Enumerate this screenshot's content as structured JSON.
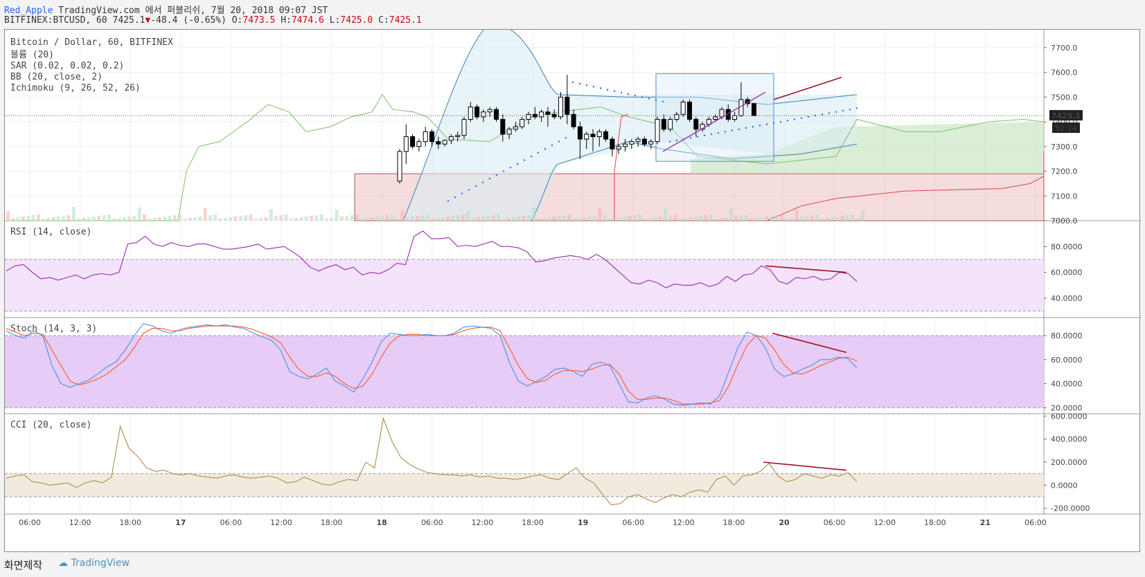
{
  "header": {
    "author": "Red_Apple",
    "published": " TradingView.com 에서 퍼블리쉬, 7월 20, 2018 09:07 JST",
    "symbol_line": "BITFINEX:BTCUSD, 60 7425.1",
    "change": "-48.4 (-0.65%)",
    "o_label": "O:",
    "o_value": "7473.5",
    "h_label": "H:",
    "h_value": "7474.6",
    "l_label": "L:",
    "l_value": "7425.0",
    "c_label": "C:",
    "c_value": "7425.1"
  },
  "footer": {
    "made_with": "화면제작",
    "brand": "TradingView"
  },
  "colors": {
    "up": "#ffffff",
    "down": "#000000",
    "rsi": "#9c27b0",
    "stoch_k": "#4a90e2",
    "stoch_d": "#ff5722",
    "cci": "#b08a4a",
    "bb": "#3a7fb5",
    "ichimoku_lag": "#7cbf6a",
    "ichimoku_red": "#e04040",
    "divergence": "#a01020"
  },
  "chart_data": [
    {
      "type": "candlestick",
      "title": "Bitcoin / Dollar, 60, BITFINEX",
      "legend": [
        "볼륨 (20)",
        "SAR (0.02, 0.02, 0.2)",
        "BB (20, close, 2)",
        "Ichimoku (9, 26, 52, 26)"
      ],
      "ylim": [
        7000,
        7750
      ],
      "yticks": [
        "7700.0",
        "7600.0",
        "7500.0",
        "7400.0",
        "7300.0",
        "7200.0",
        "7100.0",
        "7000.0"
      ],
      "last_price": "7425.1",
      "countdown": "52:24",
      "x_ticks": [
        "06:00",
        "12:00",
        "18:00",
        "17",
        "06:00",
        "12:00",
        "18:00",
        "18",
        "06:00",
        "12:00",
        "18:00",
        "19",
        "06:00",
        "12:00",
        "18:00",
        "20",
        "06:00",
        "12:00",
        "18:00",
        "21",
        "06:00"
      ],
      "candles_from_18_0000": [
        [
          7160,
          7290,
          7150,
          7280
        ],
        [
          7280,
          7390,
          7230,
          7340
        ],
        [
          7340,
          7350,
          7290,
          7300
        ],
        [
          7300,
          7330,
          7280,
          7320
        ],
        [
          7320,
          7380,
          7300,
          7360
        ],
        [
          7360,
          7370,
          7300,
          7320
        ],
        [
          7320,
          7340,
          7290,
          7310
        ],
        [
          7310,
          7330,
          7300,
          7325
        ],
        [
          7325,
          7350,
          7310,
          7340
        ],
        [
          7340,
          7360,
          7320,
          7345
        ],
        [
          7345,
          7420,
          7330,
          7410
        ],
        [
          7410,
          7480,
          7400,
          7460
        ],
        [
          7460,
          7470,
          7410,
          7420
        ],
        [
          7420,
          7450,
          7400,
          7440
        ],
        [
          7440,
          7460,
          7420,
          7450
        ],
        [
          7450,
          7460,
          7400,
          7410
        ],
        [
          7410,
          7430,
          7320,
          7350
        ],
        [
          7350,
          7380,
          7330,
          7370
        ],
        [
          7370,
          7400,
          7360,
          7380
        ],
        [
          7380,
          7420,
          7370,
          7410
        ],
        [
          7410,
          7440,
          7390,
          7430
        ],
        [
          7430,
          7460,
          7410,
          7420
        ],
        [
          7420,
          7450,
          7400,
          7440
        ],
        [
          7440,
          7460,
          7380,
          7430
        ],
        [
          7430,
          7450,
          7410,
          7420
        ],
        [
          7420,
          7520,
          7410,
          7500
        ],
        [
          7500,
          7590,
          7390,
          7430
        ],
        [
          7430,
          7450,
          7370,
          7380
        ],
        [
          7380,
          7400,
          7250,
          7330
        ],
        [
          7330,
          7360,
          7290,
          7350
        ],
        [
          7350,
          7370,
          7280,
          7340
        ],
        [
          7340,
          7370,
          7300,
          7360
        ],
        [
          7360,
          7370,
          7320,
          7330
        ],
        [
          7330,
          7340,
          7260,
          7290
        ],
        [
          7290,
          7310,
          7270,
          7300
        ],
        [
          7300,
          7330,
          7280,
          7310
        ],
        [
          7310,
          7330,
          7290,
          7320
        ],
        [
          7320,
          7340,
          7300,
          7330
        ],
        [
          7330,
          7340,
          7300,
          7310
        ],
        [
          7310,
          7330,
          7290,
          7320
        ],
        [
          7320,
          7420,
          7310,
          7410
        ],
        [
          7410,
          7430,
          7360,
          7370
        ],
        [
          7370,
          7420,
          7360,
          7410
        ],
        [
          7410,
          7440,
          7400,
          7430
        ],
        [
          7430,
          7490,
          7420,
          7480
        ],
        [
          7480,
          7490,
          7400,
          7410
        ],
        [
          7410,
          7420,
          7340,
          7370
        ],
        [
          7370,
          7400,
          7360,
          7390
        ],
        [
          7390,
          7420,
          7380,
          7410
        ],
        [
          7410,
          7430,
          7400,
          7420
        ],
        [
          7420,
          7460,
          7410,
          7450
        ],
        [
          7450,
          7470,
          7400,
          7410
        ],
        [
          7410,
          7440,
          7400,
          7425
        ],
        [
          7425,
          7560,
          7420,
          7490
        ],
        [
          7490,
          7500,
          7460,
          7473.5
        ],
        [
          7473.5,
          7474.6,
          7425.0,
          7425.1
        ]
      ]
    },
    {
      "type": "line",
      "title": "RSI (14, close)",
      "ylim": [
        25,
        100
      ],
      "yticks": [
        "80.0000",
        "60.0000",
        "40.0000"
      ],
      "band": [
        30,
        70
      ],
      "values": [
        61,
        65,
        66,
        60,
        55,
        56,
        54,
        56,
        58,
        55,
        58,
        59,
        58,
        60,
        82,
        83,
        88,
        82,
        80,
        83,
        81,
        80,
        82,
        82,
        80,
        78,
        78,
        79,
        80,
        82,
        78,
        79,
        80,
        76,
        71,
        64,
        61,
        64,
        66,
        62,
        64,
        58,
        60,
        59,
        62,
        67,
        66,
        88,
        92,
        86,
        86,
        87,
        80,
        81,
        80,
        82,
        84,
        80,
        80,
        79,
        76,
        68,
        69,
        71,
        72,
        73,
        72,
        70,
        74,
        70,
        64,
        58,
        52,
        51,
        54,
        52,
        48,
        51,
        50,
        50,
        52,
        49,
        51,
        57,
        53,
        58,
        59,
        65,
        62,
        53,
        51,
        56,
        55,
        57,
        54,
        55,
        60,
        59,
        53
      ]
    },
    {
      "type": "line",
      "title": "Stoch (14, 3, 3)",
      "ylim": [
        15,
        95
      ],
      "yticks": [
        "80.0000",
        "60.0000",
        "40.0000",
        "20.0000"
      ],
      "band": [
        20,
        80
      ],
      "series": [
        {
          "name": "K",
          "values": [
            84,
            80,
            78,
            84,
            80,
            55,
            40,
            37,
            40,
            43,
            48,
            54,
            58,
            68,
            80,
            90,
            88,
            84,
            82,
            85,
            87,
            88,
            89,
            88,
            89,
            87,
            86,
            82,
            79,
            76,
            68,
            50,
            46,
            44,
            48,
            53,
            42,
            38,
            33,
            44,
            58,
            75,
            82,
            81,
            80,
            80,
            81,
            80,
            80,
            82,
            87,
            88,
            87,
            86,
            80,
            58,
            42,
            38,
            42,
            46,
            52,
            53,
            50,
            46,
            56,
            58,
            55,
            40,
            25,
            24,
            28,
            30,
            27,
            23,
            22,
            23,
            24,
            23,
            30,
            50,
            70,
            83,
            80,
            70,
            52,
            46,
            48,
            52,
            55,
            60,
            60,
            62,
            61,
            53
          ]
        },
        {
          "name": "D",
          "values": [
            86,
            83,
            80,
            82,
            81,
            68,
            55,
            42,
            39,
            41,
            44,
            48,
            54,
            60,
            70,
            82,
            86,
            86,
            84,
            84,
            86,
            87,
            88,
            88,
            88,
            88,
            87,
            85,
            82,
            79,
            74,
            62,
            52,
            46,
            46,
            49,
            46,
            40,
            36,
            38,
            48,
            62,
            74,
            80,
            81,
            81,
            80,
            80,
            80,
            81,
            84,
            86,
            87,
            87,
            84,
            70,
            55,
            44,
            41,
            43,
            48,
            51,
            51,
            50,
            52,
            55,
            56,
            48,
            34,
            27,
            27,
            28,
            28,
            26,
            23,
            23,
            23,
            24,
            26,
            38,
            56,
            72,
            80,
            78,
            68,
            56,
            49,
            48,
            51,
            55,
            58,
            61,
            62,
            59
          ]
        }
      ]
    },
    {
      "type": "line",
      "title": "CCI (20, close)",
      "ylim": [
        -250,
        620
      ],
      "yticks": [
        "600.0000",
        "400.0000",
        "200.0000",
        "0.0000",
        "-200.0000"
      ],
      "band": [
        -100,
        100
      ],
      "values": [
        60,
        80,
        90,
        30,
        20,
        0,
        10,
        20,
        -20,
        20,
        40,
        20,
        70,
        510,
        320,
        250,
        150,
        120,
        130,
        100,
        90,
        100,
        80,
        70,
        60,
        80,
        90,
        70,
        60,
        70,
        80,
        60,
        20,
        30,
        70,
        40,
        10,
        0,
        30,
        50,
        40,
        200,
        150,
        580,
        380,
        240,
        180,
        140,
        110,
        100,
        90,
        90,
        80,
        90,
        70,
        80,
        60,
        60,
        50,
        60,
        80,
        90,
        60,
        50,
        100,
        150,
        60,
        20,
        -80,
        -170,
        -160,
        -100,
        -80,
        -120,
        -150,
        -110,
        -80,
        -100,
        -60,
        -40,
        -60,
        50,
        80,
        0,
        80,
        90,
        120,
        190,
        80,
        30,
        50,
        100,
        80,
        60,
        90,
        80,
        110,
        30
      ]
    }
  ]
}
